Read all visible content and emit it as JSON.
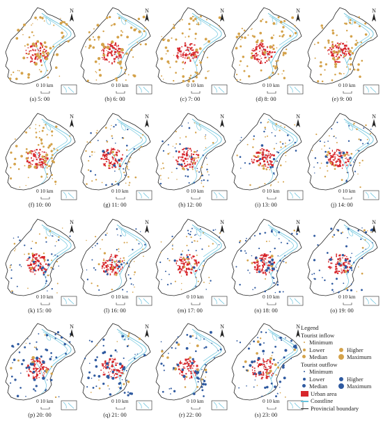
{
  "north_label": "N",
  "scale_label": "0 10 km",
  "panels": [
    {
      "caption": "(a) 5: 00",
      "mode": "in",
      "level": 1.0
    },
    {
      "caption": "(b) 6: 00",
      "mode": "in",
      "level": 1.0
    },
    {
      "caption": "(c) 7: 00",
      "mode": "in",
      "level": 0.95
    },
    {
      "caption": "(d) 8: 00",
      "mode": "in",
      "level": 0.9
    },
    {
      "caption": "(e) 9: 00",
      "mode": "in",
      "level": 0.9
    },
    {
      "caption": "(f) 10: 00",
      "mode": "in",
      "level": 0.85
    },
    {
      "caption": "(g) 11: 00",
      "mode": "mix",
      "level": 0.5
    },
    {
      "caption": "(h) 12: 00",
      "mode": "mix",
      "level": 0.45
    },
    {
      "caption": "(i) 13: 00",
      "mode": "mix",
      "level": 0.45
    },
    {
      "caption": "(j) 14: 00",
      "mode": "mix",
      "level": 0.5
    },
    {
      "caption": "(k) 15: 00",
      "mode": "mix",
      "level": 0.45
    },
    {
      "caption": "(l) 16: 00",
      "mode": "mix",
      "level": 0.4
    },
    {
      "caption": "(m) 17: 00",
      "mode": "mix",
      "level": 0.35
    },
    {
      "caption": "(n) 18: 00",
      "mode": "out",
      "level": 0.6
    },
    {
      "caption": "(o) 19: 00",
      "mode": "out",
      "level": 0.7
    },
    {
      "caption": "(p) 20: 00",
      "mode": "out",
      "level": 0.8
    },
    {
      "caption": "(q) 21: 00",
      "mode": "out",
      "level": 0.85
    },
    {
      "caption": "(r) 22: 00",
      "mode": "out",
      "level": 0.9
    },
    {
      "caption": "(s) 23: 00",
      "mode": "out",
      "level": 0.95
    }
  ],
  "legend": {
    "title": "Legend",
    "inflow_title": "Tourist inflow",
    "outflow_title": "Tourist outflow",
    "minimum": "Minimum",
    "lower": "Lower",
    "median": "Median",
    "higher": "Higher",
    "maximum": "Maximum",
    "urban": "Urban area",
    "coastline": "Coastline",
    "boundary": "Provincial boundary"
  },
  "colors": {
    "inflow": "#d4a24a",
    "outflow": "#2f5aa0",
    "urban": "#d7262b",
    "coastline": "#66c2dc",
    "boundary": "#222222"
  }
}
